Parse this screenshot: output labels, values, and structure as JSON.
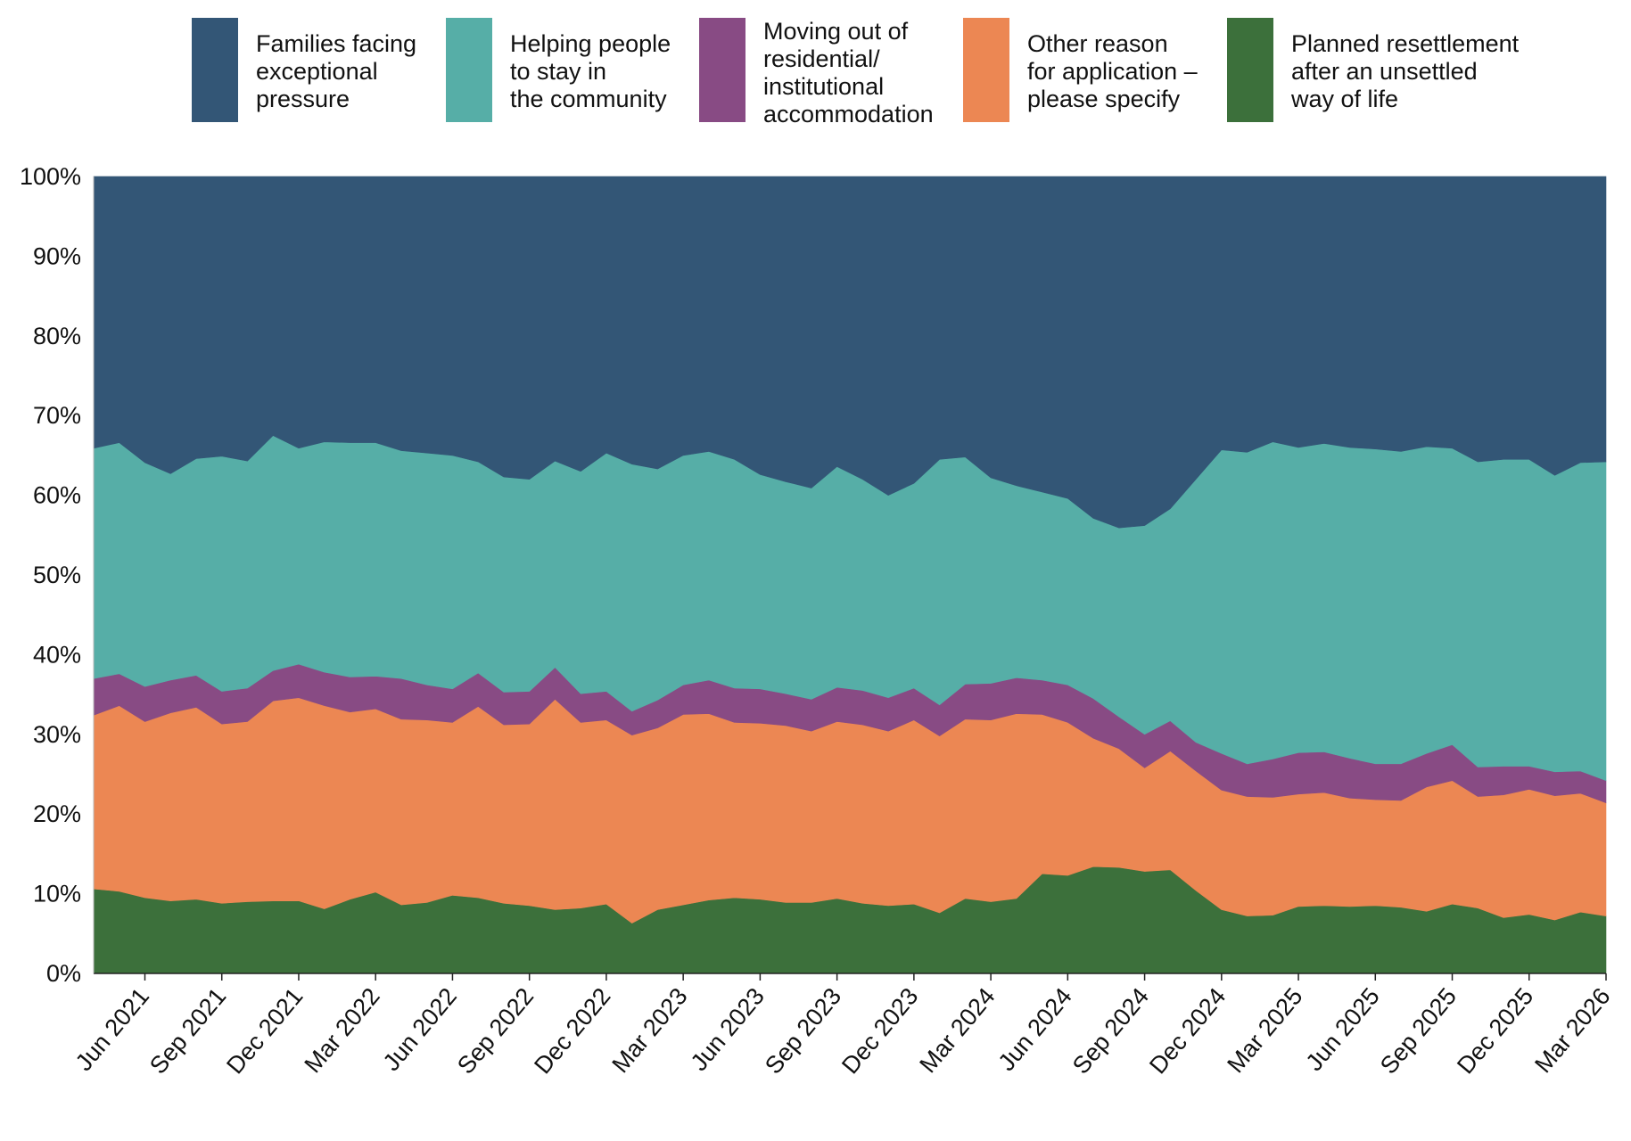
{
  "chart_data": {
    "type": "area",
    "stacked": true,
    "normalized": true,
    "legend_position": "top",
    "grid": "horizontal",
    "title": "",
    "xlabel": "",
    "ylabel": "",
    "ylim": [
      0,
      100
    ],
    "y_ticks": [
      "0%",
      "10%",
      "20%",
      "30%",
      "40%",
      "50%",
      "60%",
      "70%",
      "80%",
      "90%",
      "100%"
    ],
    "x_ticks": [
      "Jun 2021",
      "Sep 2021",
      "Dec 2021",
      "Mar 2022",
      "Jun 2022",
      "Sep 2022",
      "Dec 2022",
      "Mar 2023",
      "Jun 2023",
      "Sep 2023",
      "Dec 2023",
      "Mar 2024",
      "Jun 2024",
      "Sep 2024",
      "Dec 2024",
      "Mar 2025",
      "Jun 2025",
      "Sep 2025",
      "Dec 2025",
      "Mar 2026"
    ],
    "x": [
      "Apr 2021",
      "May 2021",
      "Jun 2021",
      "Jul 2021",
      "Aug 2021",
      "Sep 2021",
      "Oct 2021",
      "Nov 2021",
      "Dec 2021",
      "Jan 2022",
      "Feb 2022",
      "Mar 2022",
      "Apr 2022",
      "May 2022",
      "Jun 2022",
      "Jul 2022",
      "Aug 2022",
      "Sep 2022",
      "Oct 2022",
      "Nov 2022",
      "Dec 2022",
      "Jan 2023",
      "Feb 2023",
      "Mar 2023",
      "Apr 2023",
      "May 2023",
      "Jun 2023",
      "Jul 2023",
      "Aug 2023",
      "Sep 2023",
      "Oct 2023",
      "Nov 2023",
      "Dec 2023",
      "Jan 2024",
      "Feb 2024",
      "Mar 2024",
      "Apr 2024",
      "May 2024",
      "Jun 2024",
      "Jul 2024",
      "Aug 2024",
      "Sep 2024",
      "Oct 2024",
      "Nov 2024",
      "Dec 2024",
      "Jan 2025",
      "Feb 2025",
      "Mar 2025",
      "Apr 2025",
      "May 2025",
      "Jun 2025",
      "Jul 2025",
      "Aug 2025",
      "Sep 2025",
      "Oct 2025",
      "Nov 2025",
      "Dec 2025",
      "Jan 2026",
      "Feb 2026",
      "Mar 2026"
    ],
    "series": [
      {
        "name": "Planned resettlement after an unsettled way of life",
        "color": "#3c703b",
        "values": [
          10.6,
          10.3,
          9.5,
          9.1,
          9.3,
          8.8,
          9.0,
          9.1,
          9.1,
          8.1,
          9.3,
          10.2,
          8.6,
          8.9,
          9.8,
          9.5,
          8.8,
          8.5,
          8.0,
          8.2,
          8.7,
          6.3,
          8.0,
          8.6,
          9.2,
          9.5,
          9.3,
          8.9,
          8.9,
          9.4,
          8.8,
          8.5,
          8.7,
          7.6,
          9.4,
          9.0,
          9.4,
          12.5,
          12.3,
          13.4,
          13.3,
          12.8,
          13.0,
          10.4,
          8.0,
          7.2,
          7.3,
          8.4,
          8.5,
          8.4,
          8.5,
          8.3,
          7.8,
          8.7,
          8.2,
          7.0,
          7.4,
          6.7,
          7.7,
          7.2
        ]
      },
      {
        "name": "Other reason for application – please specify",
        "color": "#ec8753",
        "values": [
          21.8,
          23.3,
          22.1,
          23.6,
          24.1,
          22.5,
          22.6,
          25.1,
          25.5,
          25.5,
          23.5,
          23.0,
          23.3,
          22.9,
          21.7,
          24.0,
          22.4,
          22.8,
          26.4,
          23.3,
          23.1,
          23.6,
          22.8,
          23.9,
          23.4,
          22.0,
          22.1,
          22.2,
          21.5,
          22.2,
          22.4,
          21.9,
          23.1,
          22.2,
          22.5,
          22.8,
          23.2,
          20.0,
          19.2,
          16.1,
          14.9,
          13.0,
          14.9,
          15.0,
          15.0,
          15.0,
          14.8,
          14.1,
          14.2,
          13.6,
          13.3,
          13.4,
          15.6,
          15.5,
          14.0,
          15.4,
          15.7,
          15.6,
          14.9,
          14.2
        ]
      },
      {
        "name": "Moving out of residential/ institutional accommodation",
        "color": "#884b84",
        "values": [
          4.6,
          4.0,
          4.4,
          4.1,
          4.0,
          4.1,
          4.2,
          3.8,
          4.2,
          4.2,
          4.4,
          4.1,
          5.1,
          4.4,
          4.2,
          4.2,
          4.1,
          4.1,
          4.0,
          3.6,
          3.6,
          3.0,
          3.5,
          3.7,
          4.2,
          4.3,
          4.3,
          4.0,
          4.0,
          4.3,
          4.3,
          4.2,
          4.0,
          3.9,
          4.4,
          4.6,
          4.5,
          4.3,
          4.7,
          5.0,
          4.0,
          4.2,
          3.8,
          3.6,
          4.6,
          4.1,
          4.8,
          5.2,
          5.1,
          5.0,
          4.5,
          4.6,
          4.2,
          4.5,
          3.7,
          3.6,
          2.9,
          3.0,
          2.8,
          2.8
        ]
      },
      {
        "name": "Helping people to stay in the community",
        "color": "#56aea7",
        "values": [
          28.9,
          29.0,
          28.1,
          25.9,
          27.2,
          29.5,
          28.5,
          29.5,
          27.1,
          28.9,
          29.4,
          29.3,
          28.6,
          29.1,
          29.3,
          26.5,
          27.0,
          26.6,
          25.9,
          27.9,
          29.9,
          31.0,
          29.0,
          28.8,
          28.7,
          28.7,
          26.9,
          26.6,
          26.5,
          27.7,
          26.5,
          25.4,
          25.7,
          30.8,
          28.5,
          25.8,
          24.1,
          23.6,
          23.4,
          22.6,
          23.7,
          26.2,
          26.6,
          33.0,
          38.1,
          39.1,
          39.8,
          38.3,
          38.7,
          39.0,
          39.5,
          39.2,
          38.5,
          37.2,
          38.3,
          38.5,
          38.5,
          37.2,
          38.7,
          40.0
        ]
      },
      {
        "name": "Families facing exceptional pressure",
        "color": "#335676",
        "values": [
          34.1,
          33.4,
          35.9,
          37.3,
          35.4,
          35.1,
          35.7,
          32.5,
          34.1,
          33.3,
          33.4,
          33.4,
          34.4,
          34.7,
          35.0,
          35.8,
          37.7,
          38.0,
          35.7,
          37.0,
          34.7,
          36.1,
          36.7,
          35.0,
          34.5,
          35.5,
          37.4,
          38.3,
          39.1,
          36.4,
          38.0,
          40.0,
          38.5,
          35.5,
          35.2,
          37.8,
          38.8,
          39.6,
          40.4,
          42.9,
          44.1,
          43.8,
          41.7,
          38.0,
          34.3,
          34.6,
          33.3,
          34.0,
          33.5,
          34.0,
          34.2,
          34.5,
          33.9,
          34.1,
          35.8,
          35.5,
          35.5,
          37.5,
          35.9,
          35.8
        ]
      }
    ]
  },
  "legend": [
    {
      "label": "Families facing\nexceptional\npressure",
      "color": "#335676"
    },
    {
      "label": "Helping people\nto stay in\nthe community",
      "color": "#56aea7"
    },
    {
      "label": "Moving out of\nresidential/\ninstitutional\naccommodation",
      "color": "#884b84"
    },
    {
      "label": "Other reason\nfor application –\nplease specify",
      "color": "#ec8753"
    },
    {
      "label": "Planned resettlement\nafter an unsettled\nway of life",
      "color": "#3c703b"
    }
  ]
}
